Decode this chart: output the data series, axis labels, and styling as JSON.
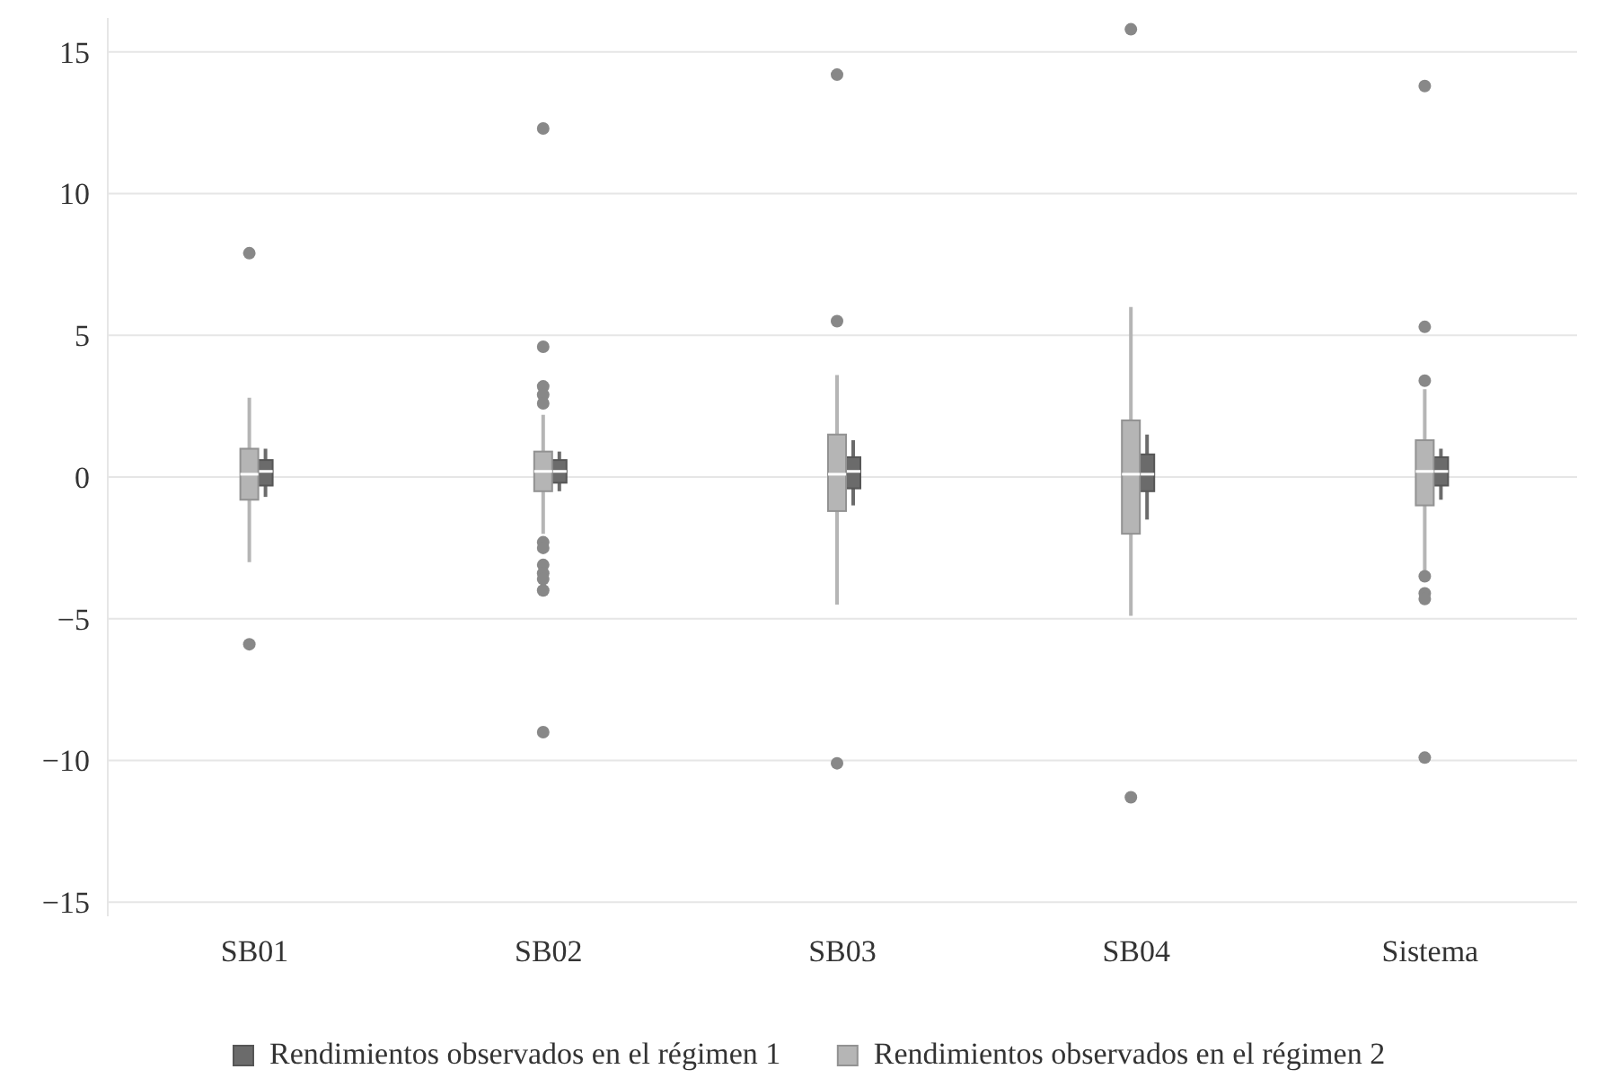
{
  "chart_data": {
    "type": "box",
    "categories": [
      "SB01",
      "SB02",
      "SB03",
      "SB04",
      "Sistema"
    ],
    "ylim": [
      -15.5,
      16.2
    ],
    "yticks": [
      {
        "value": -15,
        "label": "−15"
      },
      {
        "value": -10,
        "label": "−10"
      },
      {
        "value": -5,
        "label": "−5"
      },
      0,
      5,
      10,
      15
    ],
    "grid": "y",
    "legend": "bottom",
    "series": [
      {
        "name": "Rendimientos observados en el régimen 1",
        "color": "#6b6b6b",
        "boxes": [
          {
            "low": -0.7,
            "q1": -0.3,
            "median": 0.2,
            "q3": 0.6,
            "high": 1.0
          },
          {
            "low": -0.5,
            "q1": -0.2,
            "median": 0.2,
            "q3": 0.6,
            "high": 0.9
          },
          {
            "low": -1.0,
            "q1": -0.4,
            "median": 0.2,
            "q3": 0.7,
            "high": 1.3
          },
          {
            "low": -1.5,
            "q1": -0.5,
            "median": 0.1,
            "q3": 0.8,
            "high": 1.5
          },
          {
            "low": -0.8,
            "q1": -0.3,
            "median": 0.2,
            "q3": 0.7,
            "high": 1.0
          }
        ]
      },
      {
        "name": "Rendimientos observados en el régimen 2",
        "color": "#b5b5b5",
        "boxes": [
          {
            "low": -3.0,
            "q1": -0.8,
            "median": 0.1,
            "q3": 1.0,
            "high": 2.8,
            "outliers": [
              7.9,
              -5.9
            ]
          },
          {
            "low": -2.0,
            "q1": -0.5,
            "median": 0.2,
            "q3": 0.9,
            "high": 2.2,
            "outliers": [
              12.3,
              4.6,
              3.2,
              2.9,
              2.6,
              -2.3,
              -2.5,
              -3.1,
              -3.4,
              -3.6,
              -4.0,
              -9.0
            ]
          },
          {
            "low": -4.5,
            "q1": -1.2,
            "median": 0.1,
            "q3": 1.5,
            "high": 3.6,
            "outliers": [
              14.2,
              5.5,
              -10.1
            ]
          },
          {
            "low": -4.9,
            "q1": -2.0,
            "median": 0.1,
            "q3": 2.0,
            "high": 6.0,
            "outliers": [
              15.8,
              -11.3
            ]
          },
          {
            "low": -3.3,
            "q1": -1.0,
            "median": 0.2,
            "q3": 1.3,
            "high": 3.1,
            "outliers": [
              13.8,
              5.3,
              3.4,
              -3.5,
              -4.1,
              -4.3,
              -9.9
            ]
          }
        ]
      }
    ]
  }
}
